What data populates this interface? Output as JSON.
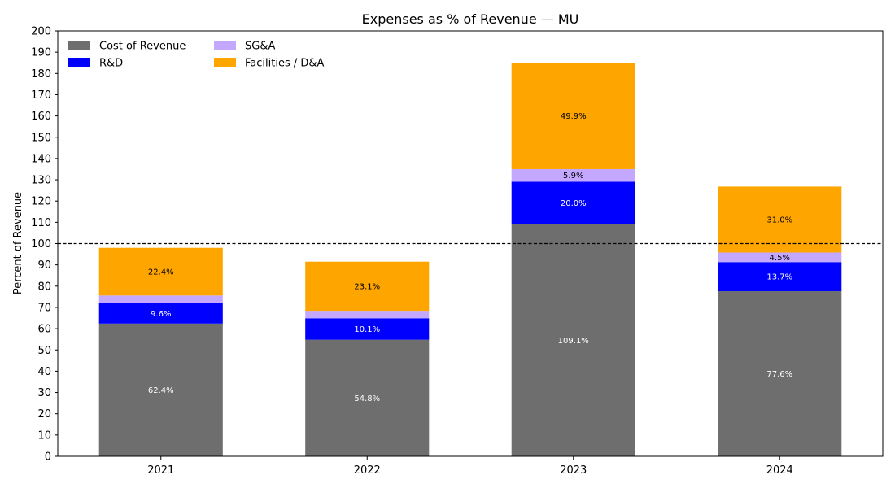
{
  "chart_data": {
    "type": "bar",
    "stacked": true,
    "title": "Expenses as % of Revenue — MU",
    "xlabel": "",
    "ylabel": "Percent of Revenue",
    "ylim": [
      0,
      200
    ],
    "ytick_step": 10,
    "reference_line": {
      "y": 100,
      "style": "dashed"
    },
    "grid": false,
    "legend_position": "top-left",
    "categories": [
      "2021",
      "2022",
      "2023",
      "2024"
    ],
    "series": [
      {
        "name": "Cost of Revenue",
        "color": "#6e6e6e",
        "label_color": "#ffffff",
        "values": [
          62.4,
          54.8,
          109.1,
          77.6
        ],
        "labels": [
          "62.4%",
          "54.8%",
          "109.1%",
          "77.6%"
        ]
      },
      {
        "name": "R&D",
        "color": "#0000ff",
        "label_color": "#ffffff",
        "values": [
          9.6,
          10.1,
          20.0,
          13.7
        ],
        "labels": [
          "9.6%",
          "10.1%",
          "20.0%",
          "13.7%"
        ]
      },
      {
        "name": "SG&A",
        "color": "#c4a8ff",
        "label_color": "#000000",
        "values": [
          3.6,
          3.5,
          5.9,
          4.5
        ],
        "labels": [
          "",
          "",
          "5.9%",
          "4.5%"
        ]
      },
      {
        "name": "Facilities / D&A",
        "color": "#ffa500",
        "label_color": "#000000",
        "values": [
          22.4,
          23.1,
          49.9,
          31.0
        ],
        "labels": [
          "22.4%",
          "23.1%",
          "49.9%",
          "31.0%"
        ]
      }
    ]
  }
}
